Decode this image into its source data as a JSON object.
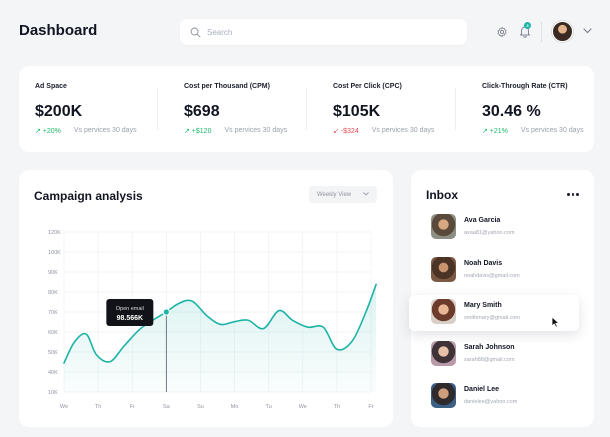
{
  "header": {
    "title": "Dashboard",
    "search_placeholder": "Search",
    "notification_count": "3"
  },
  "stats": [
    {
      "label": "Ad Space",
      "value": "$200K",
      "change": "↗ +20%",
      "trend": "up",
      "vs": "Vs pervices 30 days"
    },
    {
      "label": "Cost per Thousand (CPM)",
      "value": "$698",
      "change": "↗ +$120",
      "trend": "up",
      "vs": "Vs pervices 30 days"
    },
    {
      "label": "Cost Per Click (CPC)",
      "value": "$105K",
      "change": "↙ -$324",
      "trend": "down",
      "vs": "Vs pervices 30 days"
    },
    {
      "label": "Click-Through Rate (CTR)",
      "value": "30.46 %",
      "change": "↗ +21%",
      "trend": "up",
      "vs": "Vs pervices 30 days"
    }
  ],
  "campaign": {
    "title": "Campaign analysis",
    "view_select": "Weekly View"
  },
  "chart_data": {
    "type": "area",
    "title": "Campaign analysis",
    "categories": [
      "We",
      "Th",
      "Fr",
      "Sa",
      "Su",
      "Mo",
      "Tu",
      "We",
      "Th",
      "Fr"
    ],
    "y_ticks": [
      "120K",
      "100K",
      "90K",
      "80K",
      "70K",
      "60K",
      "50K",
      "40K",
      "10K"
    ],
    "x": [
      0,
      0.3,
      0.65,
      0.95,
      1.35,
      1.75,
      2.2,
      2.6,
      3.0,
      3.35,
      3.75,
      4.2,
      4.6,
      5.0,
      5.4,
      5.85,
      6.3,
      6.7,
      7.15,
      7.6,
      8.0,
      8.45,
      8.85,
      9.15
    ],
    "y": [
      31,
      46,
      52,
      37,
      32,
      43,
      55,
      62,
      68,
      74,
      76,
      65,
      59,
      61,
      62,
      56,
      69,
      62,
      57,
      57,
      41,
      47,
      68,
      88
    ],
    "y_range": [
      10,
      126
    ],
    "tooltip": {
      "label": "Open email",
      "value": "98.566K",
      "x_index": 3
    },
    "accent": "#1cb3a6"
  },
  "inbox": {
    "title": "Inbox",
    "messages": [
      {
        "name": "Ava Garcia",
        "email": "avaa81@yahoo.com"
      },
      {
        "name": "Noah Davis",
        "email": "noahdavis@gmail.com"
      },
      {
        "name": "Mary Smith",
        "email": "smithmary@gmail.com",
        "active": true
      },
      {
        "name": "Sarah Johnson",
        "email": "sarah88@gmail.com"
      },
      {
        "name": "Daniel Lee",
        "email": "danielee@yahoo.com"
      }
    ]
  },
  "colors": {
    "accent": "#1cb3a6",
    "up": "#1cb86a",
    "down": "#e5484d",
    "background": "#f4f5f7"
  }
}
